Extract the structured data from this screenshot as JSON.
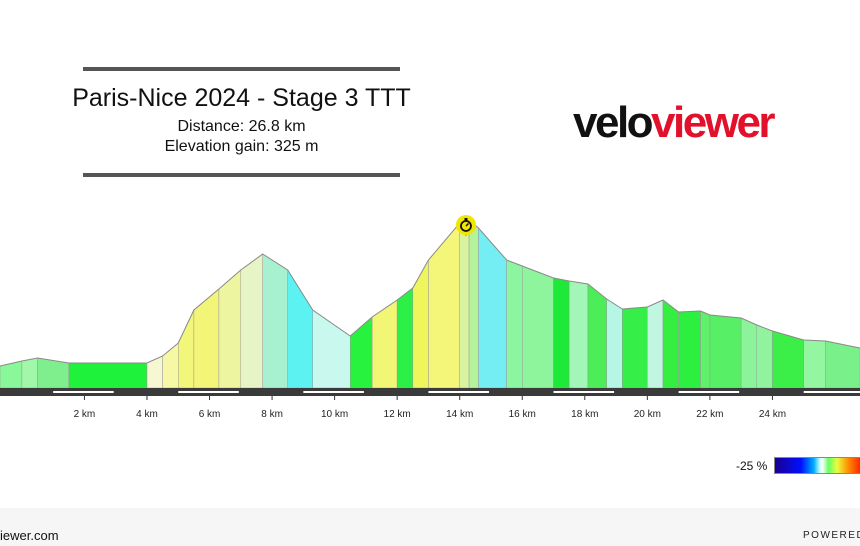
{
  "header": {
    "title": "Paris-Nice 2024 - Stage 3 TTT",
    "distance_text": "Distance: 26.8 km",
    "elevation_text": "Elevation gain: 325 m"
  },
  "logo": {
    "part1": "velo",
    "part2": "viewer",
    "color_velo": "#111111",
    "color_viewer": "#e3102b"
  },
  "legend": {
    "min_label": "-25 %"
  },
  "footer": {
    "left": "iewer.com",
    "right": "POWERED B"
  },
  "chart_data": {
    "type": "area",
    "xlabel": "",
    "ylabel": "",
    "xlim": [
      -0.7,
      26.8
    ],
    "x_ticks": [
      2,
      4,
      6,
      8,
      10,
      12,
      14,
      16,
      18,
      20,
      22,
      24
    ],
    "x_tick_labels": [
      "2 km",
      "4 km",
      "6 km",
      "8 km",
      "10 km",
      "12 km",
      "14 km",
      "16 km",
      "18 km",
      "20 km",
      "22 km",
      "24 km"
    ],
    "grid": false,
    "marker": {
      "name": "timing-point",
      "km": 14.2
    },
    "profile_x": [
      -0.7,
      0.0,
      0.5,
      1.5,
      4.0,
      4.5,
      5.0,
      5.5,
      6.3,
      7.0,
      7.7,
      8.5,
      9.3,
      10.5,
      11.2,
      12.0,
      12.5,
      13.0,
      14.0,
      14.3,
      14.6,
      15.5,
      16.0,
      17.0,
      17.5,
      18.1,
      18.7,
      19.2,
      20.0,
      20.5,
      21.0,
      21.7,
      22.0,
      23.0,
      23.5,
      24.0,
      25.0,
      25.7,
      26.8
    ],
    "profile_y": [
      22,
      27,
      30,
      25,
      25,
      32,
      45,
      78,
      99,
      118,
      134,
      118,
      78,
      52,
      71,
      88,
      100,
      128,
      165,
      168,
      160,
      128,
      122,
      110,
      107,
      104,
      89,
      79,
      81,
      88,
      76,
      77,
      73,
      70,
      63,
      57,
      48,
      47,
      40
    ],
    "segments": [
      {
        "x0": -0.7,
        "x1": 0.0,
        "color": "#88f898"
      },
      {
        "x0": 0.0,
        "x1": 0.5,
        "color": "#a0f8a8"
      },
      {
        "x0": 0.5,
        "x1": 1.5,
        "color": "#7fef8e"
      },
      {
        "x0": 1.5,
        "x1": 4.0,
        "color": "#1ef23a"
      },
      {
        "x0": 4.0,
        "x1": 4.5,
        "color": "#f7f8d2"
      },
      {
        "x0": 4.5,
        "x1": 5.0,
        "color": "#f6f8a5"
      },
      {
        "x0": 5.0,
        "x1": 5.5,
        "color": "#f2f77a"
      },
      {
        "x0": 5.5,
        "x1": 6.3,
        "color": "#f3f579"
      },
      {
        "x0": 6.3,
        "x1": 7.0,
        "color": "#eef5a0"
      },
      {
        "x0": 7.0,
        "x1": 7.7,
        "color": "#e6f4c6"
      },
      {
        "x0": 7.7,
        "x1": 8.5,
        "color": "#a7f1d1"
      },
      {
        "x0": 8.5,
        "x1": 9.3,
        "color": "#5df2f2"
      },
      {
        "x0": 9.3,
        "x1": 10.5,
        "color": "#c8f8ee"
      },
      {
        "x0": 10.5,
        "x1": 11.2,
        "color": "#27f23d"
      },
      {
        "x0": 11.2,
        "x1": 12.0,
        "color": "#f1f775"
      },
      {
        "x0": 12.0,
        "x1": 12.5,
        "color": "#2cf045"
      },
      {
        "x0": 12.5,
        "x1": 13.0,
        "color": "#eef65c"
      },
      {
        "x0": 13.0,
        "x1": 14.0,
        "color": "#f4f67a"
      },
      {
        "x0": 14.0,
        "x1": 14.3,
        "color": "#d9f3a0"
      },
      {
        "x0": 14.3,
        "x1": 14.6,
        "color": "#b4f39a"
      },
      {
        "x0": 14.6,
        "x1": 15.5,
        "color": "#75eef3"
      },
      {
        "x0": 15.5,
        "x1": 16.0,
        "color": "#8bf5a0"
      },
      {
        "x0": 16.0,
        "x1": 17.0,
        "color": "#8ef59d"
      },
      {
        "x0": 17.0,
        "x1": 17.5,
        "color": "#1ee838"
      },
      {
        "x0": 17.5,
        "x1": 18.1,
        "color": "#a1f6b8"
      },
      {
        "x0": 18.1,
        "x1": 18.7,
        "color": "#4ced59"
      },
      {
        "x0": 18.7,
        "x1": 19.2,
        "color": "#b6f6e4"
      },
      {
        "x0": 19.2,
        "x1": 20.0,
        "color": "#35ee48"
      },
      {
        "x0": 20.0,
        "x1": 20.5,
        "color": "#c1f7e1"
      },
      {
        "x0": 20.5,
        "x1": 21.0,
        "color": "#34ef40"
      },
      {
        "x0": 21.0,
        "x1": 21.7,
        "color": "#2cf040"
      },
      {
        "x0": 21.7,
        "x1": 22.0,
        "color": "#60f06b"
      },
      {
        "x0": 22.0,
        "x1": 23.0,
        "color": "#57ef66"
      },
      {
        "x0": 23.0,
        "x1": 23.5,
        "color": "#8bf49a"
      },
      {
        "x0": 23.5,
        "x1": 24.0,
        "color": "#8ff49d"
      },
      {
        "x0": 24.0,
        "x1": 25.0,
        "color": "#3cef48"
      },
      {
        "x0": 25.0,
        "x1": 25.7,
        "color": "#95f6a2"
      },
      {
        "x0": 25.7,
        "x1": 26.8,
        "color": "#79f08a"
      }
    ]
  }
}
